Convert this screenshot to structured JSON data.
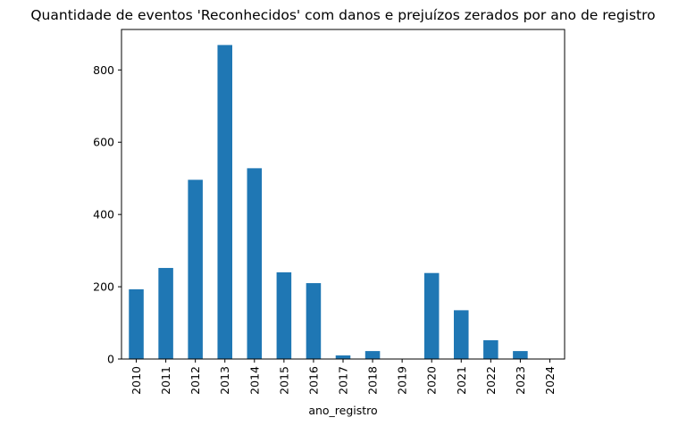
{
  "chart_data": {
    "type": "bar",
    "title": "Quantidade de eventos 'Reconhecidos' com danos e prejuízos zerados por ano de registro",
    "xlabel": "ano_registro",
    "ylabel": "",
    "categories": [
      "2010",
      "2011",
      "2012",
      "2013",
      "2014",
      "2015",
      "2016",
      "2017",
      "2018",
      "2019",
      "2020",
      "2021",
      "2022",
      "2023",
      "2024"
    ],
    "values": [
      193,
      252,
      496,
      869,
      528,
      240,
      210,
      10,
      22,
      0,
      238,
      135,
      52,
      22,
      0
    ],
    "ylim": [
      0,
      912
    ],
    "yticks": [
      0,
      200,
      400,
      600,
      800
    ],
    "grid": false,
    "legend": "none",
    "bar_color": "#1f77b4"
  }
}
